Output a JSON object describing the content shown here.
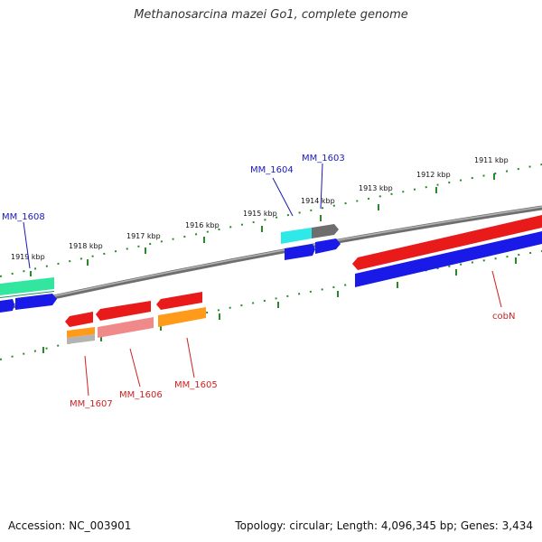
{
  "title": "Methanosarcina mazei Go1, complete genome",
  "footer": {
    "accession": "Accession: NC_003901",
    "summary": "Topology: circular; Length: 4,096,345 bp; Genes: 3,434"
  },
  "colors": {
    "backbone": "#8a8a8a",
    "ticks": "#2a8a2a",
    "label_forward": "#1a1ab8",
    "label_reverse": "#cc2222"
  },
  "ticks": [
    {
      "label": "1919 kbp"
    },
    {
      "label": "1918 kbp"
    },
    {
      "label": "1917 kbp"
    },
    {
      "label": "1916 kbp"
    },
    {
      "label": "1915 kbp"
    },
    {
      "label": "1914 kbp"
    },
    {
      "label": "1913 kbp"
    },
    {
      "label": "1912 kbp"
    },
    {
      "label": "1911 kbp"
    }
  ],
  "genes": [
    {
      "name": "MM_1608",
      "strand": "forward"
    },
    {
      "name": "MM_1604",
      "strand": "forward"
    },
    {
      "name": "MM_1603",
      "strand": "forward"
    },
    {
      "name": "MM_1607",
      "strand": "reverse"
    },
    {
      "name": "MM_1606",
      "strand": "reverse"
    },
    {
      "name": "MM_1605",
      "strand": "reverse"
    },
    {
      "name": "cobN",
      "strand": "reverse"
    }
  ]
}
